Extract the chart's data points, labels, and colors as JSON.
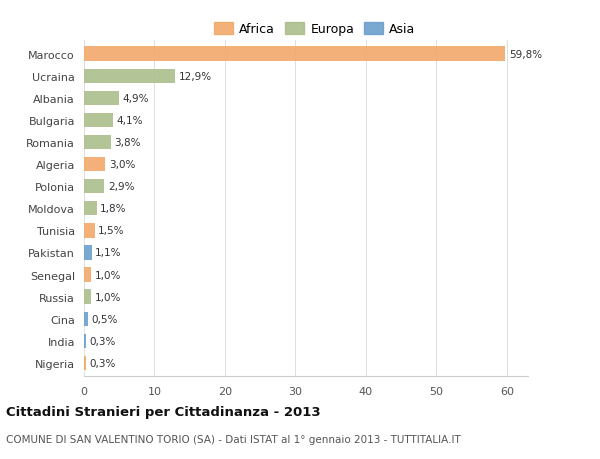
{
  "countries": [
    "Marocco",
    "Ucraina",
    "Albania",
    "Bulgaria",
    "Romania",
    "Algeria",
    "Polonia",
    "Moldova",
    "Tunisia",
    "Pakistan",
    "Senegal",
    "Russia",
    "Cina",
    "India",
    "Nigeria"
  ],
  "values": [
    59.8,
    12.9,
    4.9,
    4.1,
    3.8,
    3.0,
    2.9,
    1.8,
    1.5,
    1.1,
    1.0,
    1.0,
    0.5,
    0.3,
    0.3
  ],
  "labels": [
    "59,8%",
    "12,9%",
    "4,9%",
    "4,1%",
    "3,8%",
    "3,0%",
    "2,9%",
    "1,8%",
    "1,5%",
    "1,1%",
    "1,0%",
    "1,0%",
    "0,5%",
    "0,3%",
    "0,3%"
  ],
  "continents": [
    "Africa",
    "Europa",
    "Europa",
    "Europa",
    "Europa",
    "Africa",
    "Europa",
    "Europa",
    "Africa",
    "Asia",
    "Africa",
    "Europa",
    "Asia",
    "Asia",
    "Africa"
  ],
  "colors": {
    "Africa": "#F2A96A",
    "Europa": "#ABBE8C",
    "Asia": "#6B9FCC"
  },
  "legend_labels": [
    "Africa",
    "Europa",
    "Asia"
  ],
  "legend_colors": [
    "#F2A96A",
    "#ABBE8C",
    "#6B9FCC"
  ],
  "title": "Cittadini Stranieri per Cittadinanza - 2013",
  "subtitle": "COMUNE DI SAN VALENTINO TORIO (SA) - Dati ISTAT al 1° gennaio 2013 - TUTTITALIA.IT",
  "xlim": [
    0,
    63
  ],
  "xticks": [
    0,
    10,
    20,
    30,
    40,
    50,
    60
  ],
  "background_color": "#ffffff",
  "bar_alpha": 0.9
}
